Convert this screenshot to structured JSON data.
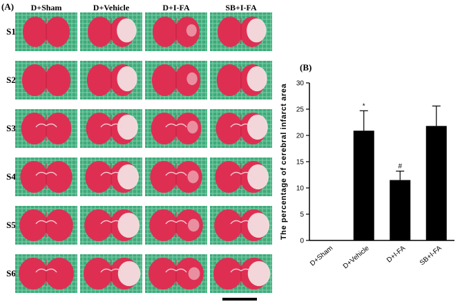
{
  "panel_a": {
    "label": "(A)",
    "columns": [
      "D+Sham",
      "D+Vehicle",
      "D+I-FA",
      "SB+I-FA"
    ],
    "rows": [
      "S1",
      "S2",
      "S3",
      "S4",
      "S5",
      "S6"
    ],
    "colors": {
      "grid_bg": "#3faa7c",
      "tissue": "#de2f52",
      "infarct": "#f2dfe0",
      "dark_tissue": "#c01f3f"
    }
  },
  "panel_b": {
    "label": "(B)"
  },
  "chart_data": {
    "type": "bar",
    "ylabel": "The percentage of cerebral infarct area",
    "xlabel": "",
    "categories": [
      "D+Sham",
      "D+Vehicle",
      "D+I-FA",
      "SB+I-FA"
    ],
    "values": [
      0,
      20.9,
      11.5,
      21.8
    ],
    "errors": [
      0,
      3.8,
      1.7,
      3.8
    ],
    "annotations": [
      "",
      "*",
      "#",
      ""
    ],
    "ylim": [
      0,
      30
    ],
    "yticks": [
      0,
      5,
      10,
      15,
      20,
      25,
      30
    ],
    "bar_color": "#000000",
    "grid": false
  }
}
